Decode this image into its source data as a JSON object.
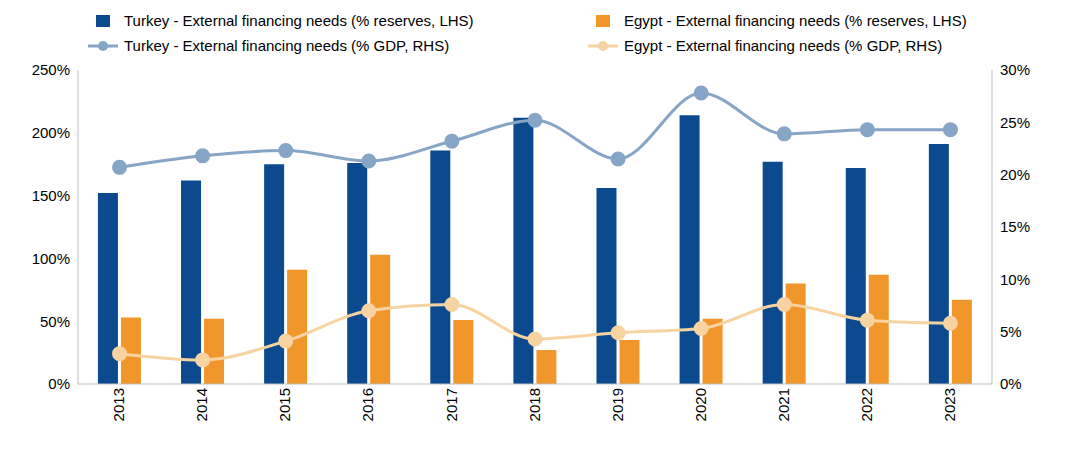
{
  "chart_data": {
    "type": "bar",
    "categories": [
      "2013",
      "2014",
      "2015",
      "2016",
      "2017",
      "2018",
      "2019",
      "2020",
      "2021",
      "2022",
      "2023"
    ],
    "series": [
      {
        "name": "Turkey - External financing needs (% reserves, LHS)",
        "type": "bar",
        "color": "#0b4a8f",
        "axis": "y",
        "values": [
          152,
          162,
          175,
          176,
          186,
          212,
          156,
          214,
          177,
          172,
          191
        ]
      },
      {
        "name": "Egypt - External financing needs (% reserves, LHS)",
        "type": "bar",
        "color": "#f0962a",
        "axis": "y",
        "values": [
          53,
          52,
          91,
          103,
          51,
          27,
          35,
          52,
          80,
          87,
          67
        ]
      },
      {
        "name": "Turkey - External financing needs (% GDP, RHS)",
        "type": "line",
        "color": "#87a5c6",
        "axis": "y2",
        "marker": "circle",
        "line_style": "solid",
        "values": [
          20.7,
          21.8,
          22.3,
          21.3,
          23.2,
          25.2,
          21.5,
          27.8,
          23.9,
          24.3,
          24.3
        ]
      },
      {
        "name": "Egypt - External financing needs (% GDP, RHS)",
        "type": "line",
        "color": "#f7d3a2",
        "axis": "y2",
        "marker": "circle",
        "line_style": "solid",
        "values": [
          2.9,
          2.3,
          4.1,
          7.0,
          7.6,
          4.3,
          4.9,
          5.3,
          7.6,
          6.1,
          5.8
        ]
      }
    ],
    "ylim": [
      0,
      250
    ],
    "yticks": [
      {
        "value": 0,
        "label": "0%"
      },
      {
        "value": 50,
        "label": "50%"
      },
      {
        "value": 100,
        "label": "100%"
      },
      {
        "value": 150,
        "label": "150%"
      },
      {
        "value": 200,
        "label": "200%"
      },
      {
        "value": 250,
        "label": "250%"
      }
    ],
    "y2lim": [
      0,
      30
    ],
    "y2ticks": [
      {
        "value": 0,
        "label": "0%"
      },
      {
        "value": 5,
        "label": "5%"
      },
      {
        "value": 10,
        "label": "10%"
      },
      {
        "value": 15,
        "label": "15%"
      },
      {
        "value": 20,
        "label": "20%"
      },
      {
        "value": 25,
        "label": "25%"
      },
      {
        "value": 30,
        "label": "30%"
      }
    ],
    "grid": false,
    "legend": "top"
  }
}
